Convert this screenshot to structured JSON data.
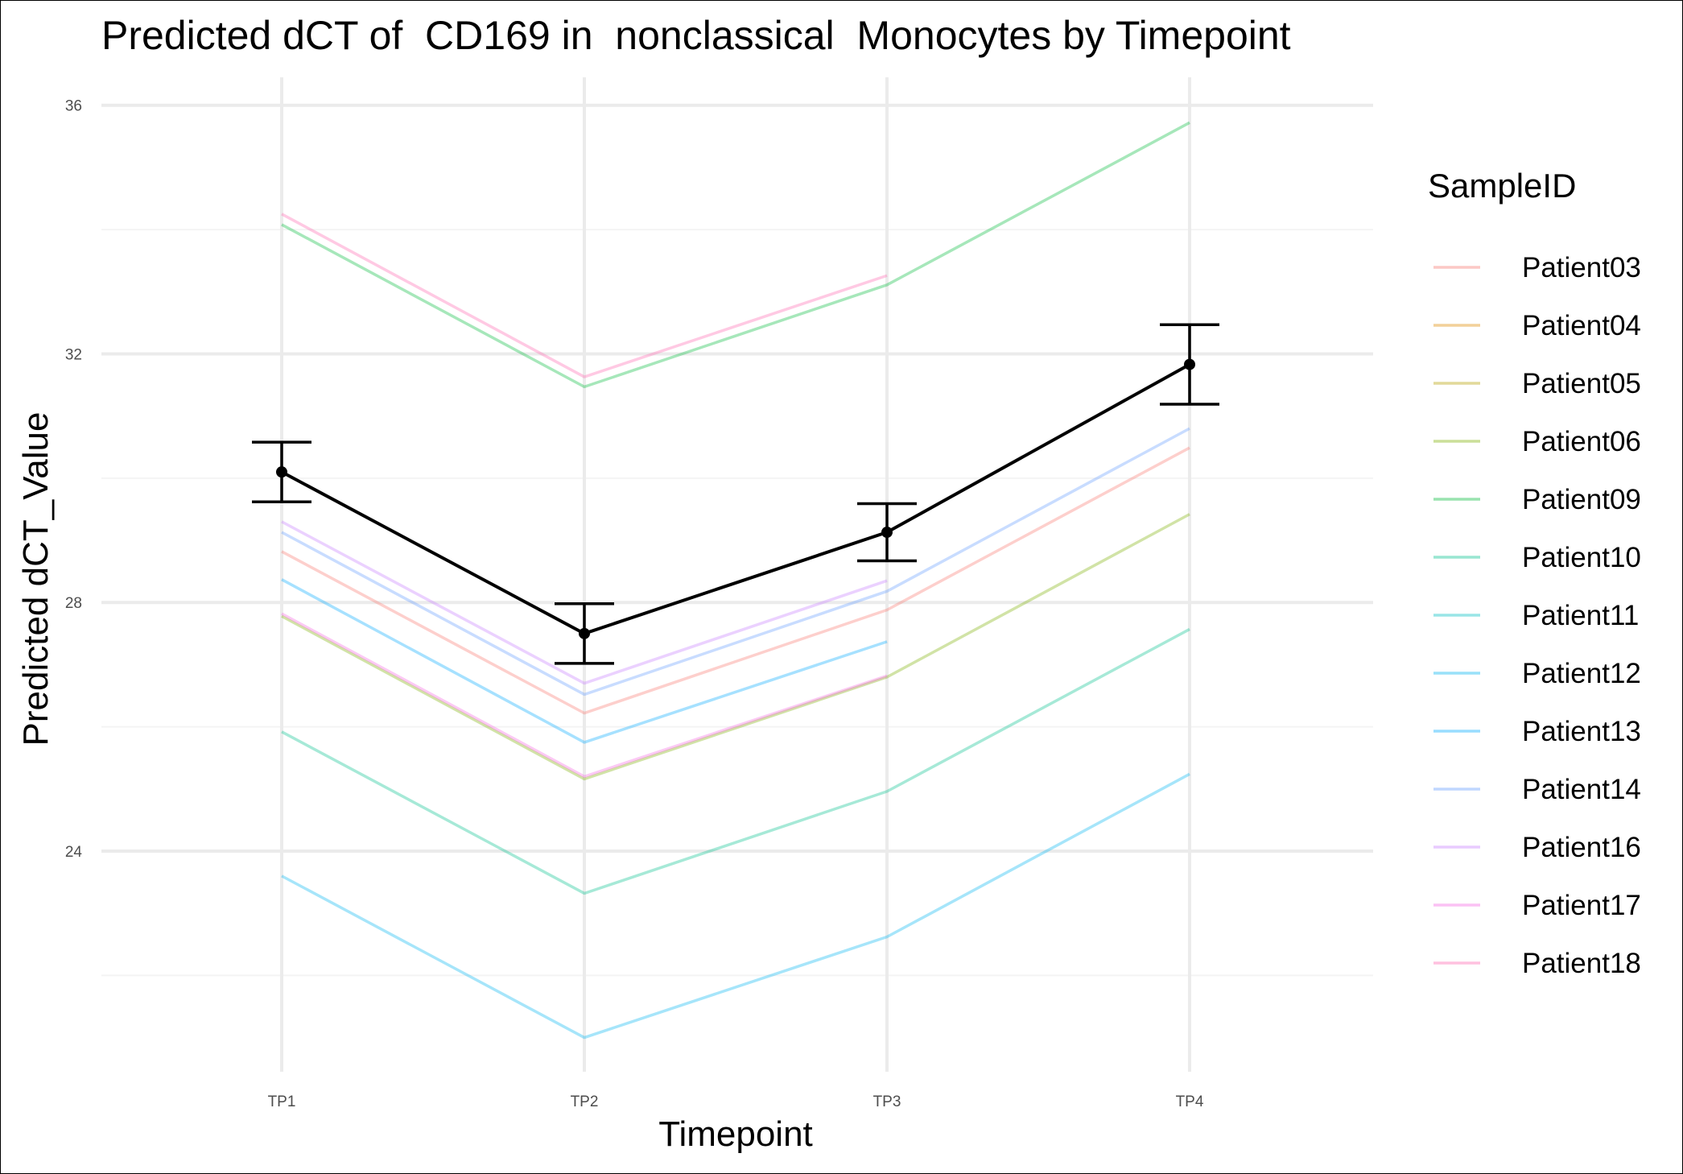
{
  "chart_data": {
    "type": "line",
    "title": "Predicted dCT of  CD169 in  nonclassical  Monocytes by Timepoint",
    "xlabel": "Timepoint",
    "ylabel": "Predicted dCT_Value",
    "categories": [
      "TP1",
      "TP2",
      "TP3",
      "TP4"
    ],
    "ylim": [
      20.45,
      36.45
    ],
    "yticks": [
      24,
      28,
      32,
      36
    ],
    "grid": true,
    "legend": {
      "title": "SampleID",
      "position": "right"
    },
    "series": [
      {
        "name": "Patient03",
        "color": "#F8766D",
        "values": [
          28.82,
          26.22,
          27.88,
          30.49
        ]
      },
      {
        "name": "Patient04",
        "color": "#DE8C00",
        "values": [
          null,
          null,
          null,
          null
        ]
      },
      {
        "name": "Patient05",
        "color": "#B79F00",
        "values": [
          null,
          null,
          null,
          null
        ]
      },
      {
        "name": "Patient06",
        "color": "#7CAE00",
        "values": [
          27.78,
          25.16,
          26.8,
          29.42
        ]
      },
      {
        "name": "Patient09",
        "color": "#00BA38",
        "values": [
          34.08,
          31.47,
          33.11,
          35.72
        ]
      },
      {
        "name": "Patient10",
        "color": "#00C08B",
        "values": [
          25.92,
          23.32,
          24.96,
          27.57
        ]
      },
      {
        "name": "Patient11",
        "color": "#00BFC4",
        "values": [
          null,
          null,
          null,
          null
        ]
      },
      {
        "name": "Patient12",
        "color": "#00B4F0",
        "values": [
          23.6,
          21.0,
          22.62,
          25.24
        ]
      },
      {
        "name": "Patient13",
        "color": "#00A9FF",
        "values": [
          28.37,
          25.75,
          27.37,
          null
        ]
      },
      {
        "name": "Patient14",
        "color": "#619CFF",
        "values": [
          29.13,
          26.52,
          28.18,
          30.8
        ]
      },
      {
        "name": "Patient16",
        "color": "#C77CFF",
        "values": [
          29.3,
          26.7,
          28.35,
          null
        ]
      },
      {
        "name": "Patient17",
        "color": "#F564E3",
        "values": [
          27.82,
          25.2,
          26.82,
          null
        ]
      },
      {
        "name": "Patient18",
        "color": "#FF64B0",
        "values": [
          34.25,
          31.63,
          33.26,
          null
        ]
      }
    ],
    "mean": {
      "values": [
        30.1,
        27.5,
        29.13,
        31.83
      ],
      "error_low": [
        29.62,
        27.02,
        28.67,
        31.19
      ],
      "error_high": [
        30.58,
        27.98,
        29.59,
        32.47
      ],
      "color": "#000000"
    }
  }
}
